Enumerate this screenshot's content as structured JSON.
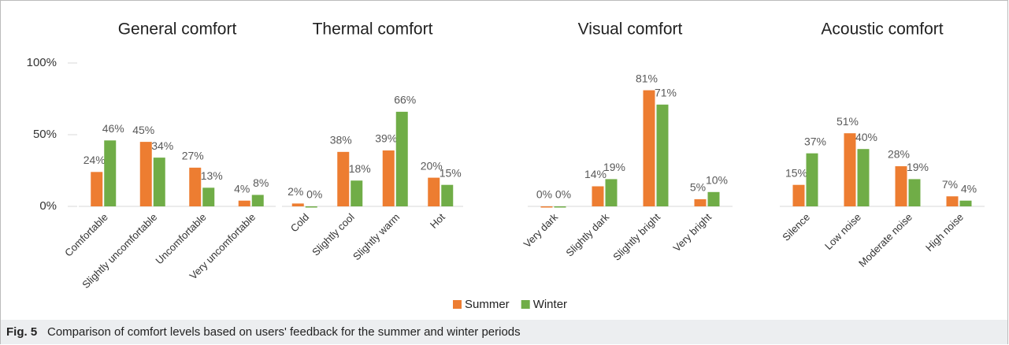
{
  "chart_data": {
    "type": "bar",
    "series": [
      {
        "name": "Summer",
        "color": "#ed7d31"
      },
      {
        "name": "Winter",
        "color": "#70ad47"
      }
    ],
    "ylim": [
      0,
      100
    ],
    "yticks": [
      {
        "value": 0,
        "label": "0%"
      },
      {
        "value": 50,
        "label": "50%"
      },
      {
        "value": 100,
        "label": "100%"
      }
    ],
    "panels": [
      {
        "title": "General comfort",
        "categories": [
          "Comfortable",
          "Slightly uncomfortable",
          "Uncomfortable",
          "Very uncomfortable"
        ],
        "values": [
          [
            24,
            45,
            27,
            4
          ],
          [
            46,
            34,
            13,
            8
          ]
        ],
        "value_labels": [
          [
            "24%",
            "45%",
            "27%",
            "4%"
          ],
          [
            "46%",
            "34%",
            "13%",
            "8%"
          ]
        ]
      },
      {
        "title": "Thermal comfort",
        "categories": [
          "Cold",
          "Slightly cool",
          "Slightly warm",
          "Hot"
        ],
        "values": [
          [
            2,
            38,
            39,
            20
          ],
          [
            0,
            18,
            66,
            15
          ]
        ],
        "value_labels": [
          [
            "2%",
            "38%",
            "39%",
            "20%"
          ],
          [
            "0%",
            "18%",
            "66%",
            "15%"
          ]
        ]
      },
      {
        "title": "Visual comfort",
        "categories": [
          "Very dark",
          "Slightly dark",
          "Slightly bright",
          "Very bright"
        ],
        "values": [
          [
            0,
            14,
            81,
            5
          ],
          [
            0,
            19,
            71,
            10
          ]
        ],
        "value_labels": [
          [
            "0%",
            "14%",
            "81%",
            "5%"
          ],
          [
            "0%",
            "19%",
            "71%",
            "10%"
          ]
        ]
      },
      {
        "title": "Acoustic comfort",
        "categories": [
          "Silence",
          "Low noise",
          "Moderate noise",
          "High noise"
        ],
        "values": [
          [
            15,
            51,
            28,
            7
          ],
          [
            37,
            40,
            19,
            4
          ]
        ],
        "value_labels": [
          [
            "15%",
            "51%",
            "28%",
            "7%"
          ],
          [
            "37%",
            "40%",
            "19%",
            "4%"
          ]
        ]
      }
    ]
  },
  "figure": {
    "label": "Fig. 5",
    "caption": "Comparison of comfort levels based on users' feedback for the summer and winter periods"
  }
}
